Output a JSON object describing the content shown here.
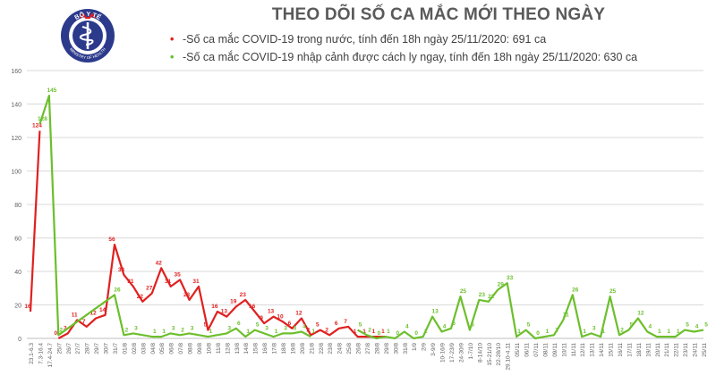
{
  "header": {
    "title": "THEO DÕI SỐ CA MẮC MỚI THEO NGÀY",
    "logo_text_top": "BỘ Y TẾ",
    "logo_text_bottom": "MINISTRY OF HEALTH"
  },
  "colors": {
    "domestic": "#e02020",
    "imported": "#6cbf2c",
    "axis_text": "#606060",
    "grid": "#d9d9d9",
    "logo": "#2c3a8c"
  },
  "chart_data": {
    "type": "line",
    "ylim": [
      0,
      160
    ],
    "yticks": [
      0,
      20,
      40,
      60,
      80,
      100,
      120,
      140,
      160
    ],
    "grid": true,
    "legend_position": "top",
    "categories": [
      "23.1-6.3",
      "7.3-16.4",
      "17.4-24.7",
      "25/7",
      "26/7",
      "27/7",
      "28/7",
      "29/7",
      "30/7",
      "31/7",
      "01/8",
      "02/8",
      "03/8",
      "04/8",
      "05/8",
      "06/8",
      "07/8",
      "08/8",
      "09/8",
      "10/8",
      "11/8",
      "12/8",
      "13/8",
      "14/8",
      "15/8",
      "16/8",
      "17/8",
      "18/8",
      "19/8",
      "20/8",
      "21/8",
      "22/8",
      "23/8",
      "24/8",
      "25/8",
      "26/8",
      "27/8",
      "28/8",
      "29/8",
      "30/8",
      "31/8",
      "1/9",
      "2/9",
      "3-9/9",
      "10-16/9",
      "17-23/9",
      "24-30/9",
      "1-7/10",
      "8-14/10",
      "15-21/10",
      "22-28/10",
      "29.10-4.11",
      "05/11",
      "06/11",
      "07/11",
      "08/11",
      "09/11",
      "10/11",
      "11/11",
      "12/11",
      "13/11",
      "14/11",
      "15/11",
      "16/11",
      "17/11",
      "18/11",
      "19/11",
      "20/11",
      "21/11",
      "22/11",
      "23/11",
      "24/11",
      "25/11"
    ],
    "series": [
      {
        "name": "-Số ca mắc COVID-19 trong nước, tính đến 18h ngày 25/11/2020: 691 ca",
        "color": "#e02020",
        "points": [
          [
            0,
            16
          ],
          [
            1,
            124
          ],
          [
            2,
            null
          ],
          [
            3,
            0
          ],
          [
            4,
            3
          ],
          [
            5,
            11
          ],
          [
            6,
            7
          ],
          [
            7,
            12
          ],
          [
            8,
            14
          ],
          [
            9,
            56
          ],
          [
            10,
            38
          ],
          [
            11,
            31
          ],
          [
            12,
            22
          ],
          [
            13,
            27
          ],
          [
            14,
            42
          ],
          [
            15,
            31
          ],
          [
            16,
            35
          ],
          [
            17,
            23
          ],
          [
            18,
            31
          ],
          [
            19,
            5
          ],
          [
            20,
            16
          ],
          [
            21,
            13
          ],
          [
            22,
            19
          ],
          [
            23,
            23
          ],
          [
            24,
            16
          ],
          [
            25,
            9
          ],
          [
            26,
            13
          ],
          [
            27,
            10
          ],
          [
            28,
            6
          ],
          [
            29,
            12
          ],
          [
            30,
            2
          ],
          [
            31,
            5
          ],
          [
            32,
            2
          ],
          [
            33,
            6
          ],
          [
            34,
            7
          ],
          [
            35,
            1
          ],
          [
            36,
            1
          ],
          [
            37,
            1
          ],
          [
            38,
            1
          ]
        ]
      },
      {
        "name": "-Số ca mắc COVID-19 nhập cảnh được cách ly ngay, tính đến 18h ngày 25/11/2020: 630 ca",
        "color": "#6cbf2c",
        "points": [
          [
            1,
            128
          ],
          [
            2,
            145
          ],
          [
            3,
            2
          ],
          [
            9,
            26
          ],
          [
            10,
            2
          ],
          [
            11,
            3
          ],
          [
            13,
            1
          ],
          [
            14,
            1
          ],
          [
            15,
            3
          ],
          [
            16,
            2
          ],
          [
            17,
            3
          ],
          [
            19,
            1
          ],
          [
            21,
            3
          ],
          [
            22,
            6
          ],
          [
            23,
            1
          ],
          [
            24,
            5
          ],
          [
            25,
            3
          ],
          [
            26,
            1
          ],
          [
            27,
            3
          ],
          [
            28,
            3
          ],
          [
            29,
            4
          ],
          [
            30,
            1
          ],
          [
            31,
            null
          ],
          [
            32,
            null
          ],
          [
            33,
            null
          ],
          [
            34,
            null
          ],
          [
            35,
            5
          ],
          [
            36,
            2
          ],
          [
            37,
            0
          ],
          [
            38,
            1
          ],
          [
            39,
            0
          ],
          [
            40,
            4
          ],
          [
            41,
            0
          ],
          [
            42,
            1
          ],
          [
            43,
            13
          ],
          [
            44,
            4
          ],
          [
            45,
            6
          ],
          [
            46,
            25
          ],
          [
            47,
            5
          ],
          [
            48,
            23
          ],
          [
            49,
            22
          ],
          [
            50,
            29
          ],
          [
            51,
            33
          ],
          [
            52,
            1
          ],
          [
            53,
            5
          ],
          [
            54,
            0
          ],
          [
            55,
            1
          ],
          [
            56,
            2
          ],
          [
            57,
            11
          ],
          [
            58,
            26
          ],
          [
            59,
            1
          ],
          [
            60,
            3
          ],
          [
            61,
            1
          ],
          [
            62,
            25
          ],
          [
            63,
            2
          ],
          [
            64,
            5
          ],
          [
            65,
            12
          ],
          [
            66,
            4
          ],
          [
            67,
            1
          ],
          [
            68,
            1
          ],
          [
            69,
            1
          ],
          [
            70,
            5
          ],
          [
            71,
            4
          ],
          [
            72,
            5
          ]
        ]
      }
    ]
  }
}
